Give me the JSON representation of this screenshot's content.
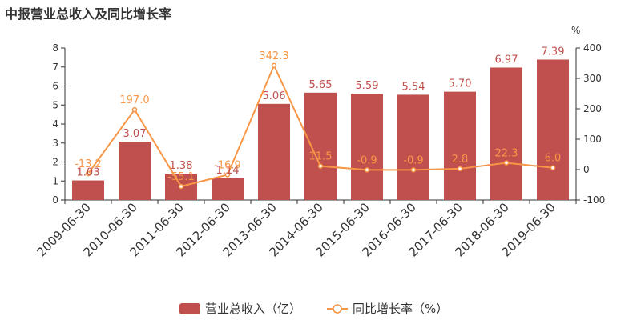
{
  "chart_data": {
    "type": "bar",
    "title": "中报营业总收入及同比增长率",
    "categories": [
      "2009-06-30",
      "2010-06-30",
      "2011-06-30",
      "2012-06-30",
      "2013-06-30",
      "2014-06-30",
      "2015-06-30",
      "2016-06-30",
      "2017-06-30",
      "2018-06-30",
      "2019-06-30"
    ],
    "series": [
      {
        "name": "营业总收入（亿）",
        "type": "bar",
        "axis": "left",
        "color": "#c0504d",
        "values": [
          1.03,
          3.07,
          1.38,
          1.14,
          5.06,
          5.65,
          5.59,
          5.54,
          5.7,
          6.97,
          7.39
        ],
        "labels": [
          "1.03",
          "3.07",
          "1.38",
          "1.14",
          "5.06",
          "5.65",
          "5.59",
          "5.54",
          "5.70",
          "6.97",
          "7.39"
        ]
      },
      {
        "name": "同比增长率（%）",
        "type": "line",
        "axis": "right",
        "color": "#f79646",
        "values": [
          -13.2,
          197.0,
          -55.1,
          -16.9,
          342.3,
          11.5,
          -0.9,
          -0.9,
          2.8,
          22.3,
          6.0
        ],
        "labels": [
          "-13.2",
          "197.0",
          "-55.1",
          "-16.9",
          "342.3",
          "11.5",
          "-0.9",
          "-0.9",
          "2.8",
          "22.3",
          "6.0"
        ]
      }
    ],
    "y_left": {
      "min": 0,
      "max": 8,
      "ticks": [
        "0",
        "1",
        "2",
        "3",
        "4",
        "5",
        "6",
        "7",
        "8"
      ]
    },
    "y_right": {
      "min": -100,
      "max": 400,
      "label": "%",
      "ticks": [
        "-100",
        "0",
        "100",
        "200",
        "300",
        "400"
      ]
    },
    "legend_position": "bottom",
    "grid": false
  }
}
